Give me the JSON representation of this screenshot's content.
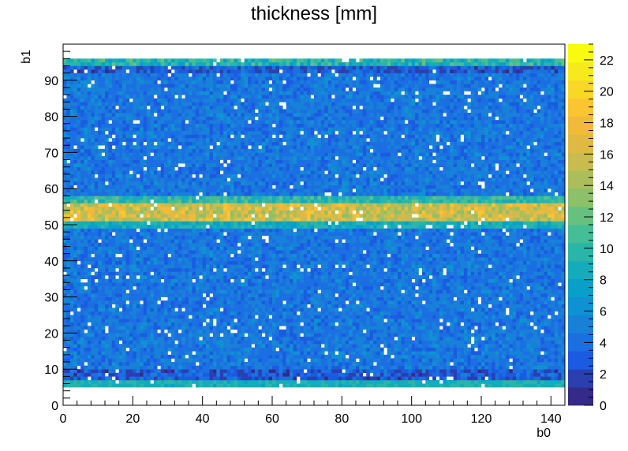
{
  "chart_data": {
    "type": "heatmap",
    "title": "thickness [mm]",
    "xlabel": "b0",
    "ylabel": "b1",
    "xlim": [
      0,
      144
    ],
    "ylim": [
      0,
      100
    ],
    "x_bins": 144,
    "y_bins": 100,
    "x_ticks": [
      0,
      20,
      40,
      60,
      80,
      100,
      120,
      140
    ],
    "y_ticks": [
      0,
      10,
      20,
      30,
      40,
      50,
      60,
      70,
      80,
      90
    ],
    "z_range": [
      0,
      23
    ],
    "z_ticks": [
      0,
      2,
      4,
      6,
      8,
      10,
      12,
      14,
      16,
      18,
      20,
      22
    ],
    "palette": [
      "#352a87",
      "#2a3fb0",
      "#1a5be1",
      "#1b6fe3",
      "#1781d8",
      "#0f92d3",
      "#08a0c8",
      "#14acbb",
      "#29b6a9",
      "#45bd95",
      "#66c07f",
      "#8cc069",
      "#acbe5c",
      "#c8bc4f",
      "#dfb944",
      "#f1ba3a",
      "#fbc531",
      "#f8d728",
      "#f6ea1d",
      "#f9fb0e"
    ],
    "bands": [
      {
        "b1_range": [
          5,
          7
        ],
        "value_range": [
          8,
          10
        ],
        "description_row": "lower edge rows"
      },
      {
        "b1_range": [
          7,
          10
        ],
        "value_range": [
          1,
          5
        ]
      },
      {
        "b1_range": [
          10,
          49
        ],
        "value_range": [
          3,
          6
        ]
      },
      {
        "b1_range": [
          49,
          51
        ],
        "value_range": [
          7,
          10
        ]
      },
      {
        "b1_range": [
          51,
          56
        ],
        "value_range": [
          13,
          19
        ]
      },
      {
        "b1_range": [
          56,
          58
        ],
        "value_range": [
          8,
          12
        ]
      },
      {
        "b1_range": [
          58,
          92
        ],
        "value_range": [
          3,
          6
        ]
      },
      {
        "b1_range": [
          92,
          94
        ],
        "value_range": [
          1,
          5
        ]
      },
      {
        "b1_range": [
          94,
          96
        ],
        "value_range": [
          7,
          12
        ]
      }
    ],
    "empty_bin_fraction": 0.035
  }
}
